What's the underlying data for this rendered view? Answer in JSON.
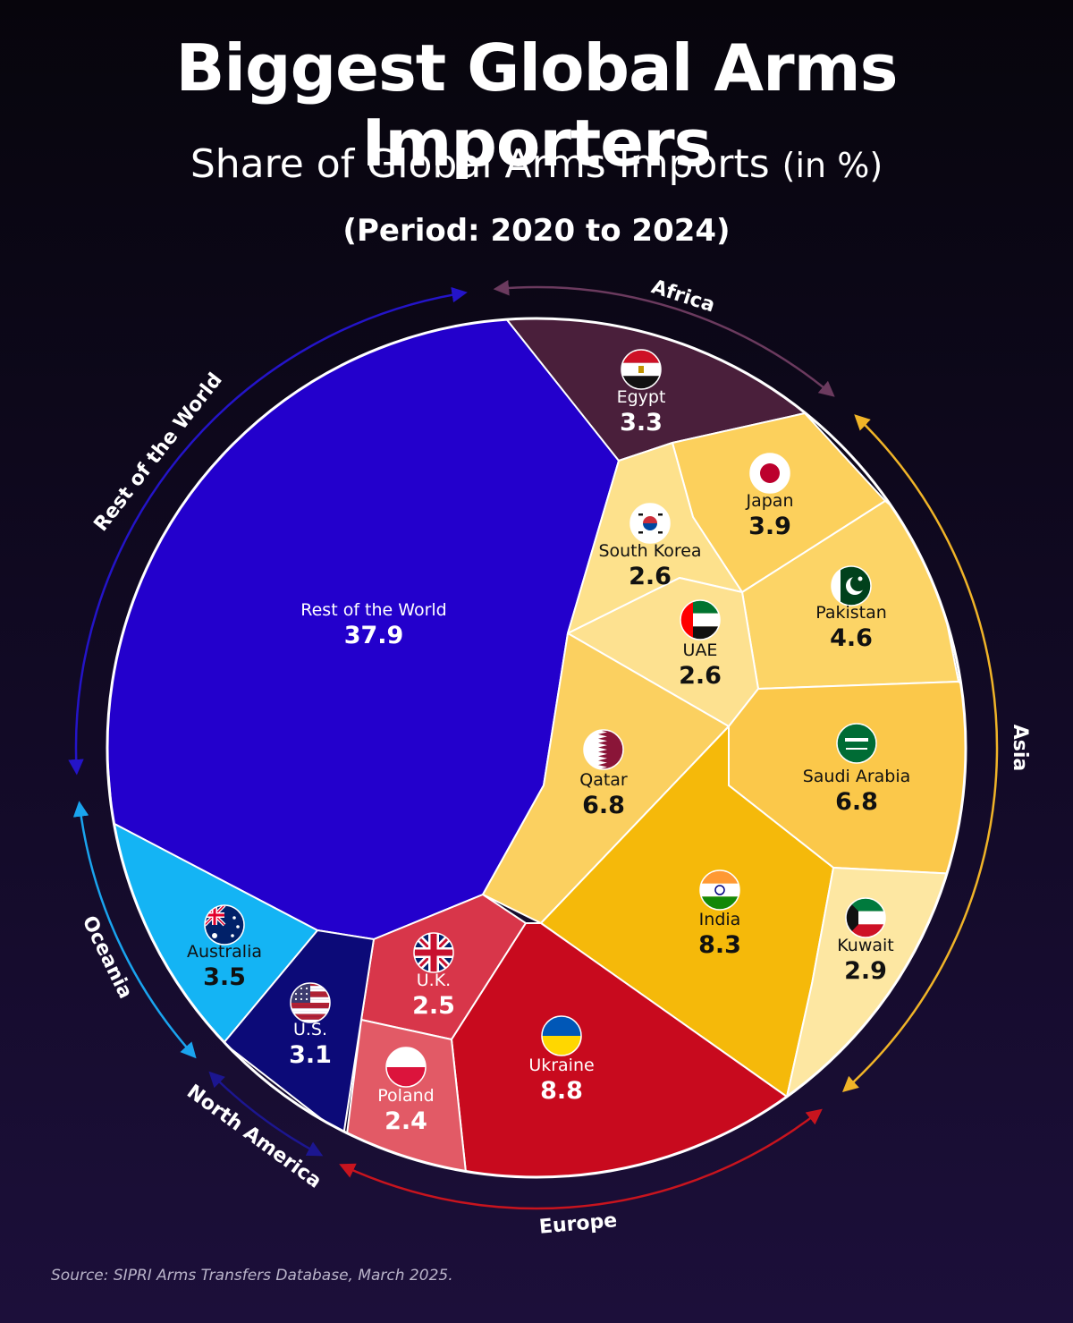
{
  "header": {
    "title": "Biggest Global Arms Importers",
    "subtitle": "Share of Global Arms Imports",
    "subtitle_unit": "(in %)",
    "period": "(Period: 2020 to 2024)"
  },
  "footer": {
    "source": "Source: SIPRI Arms Transfers Database, March 2025."
  },
  "chart_data": {
    "type": "voronoi-treemap",
    "unit": "%",
    "categories": [
      "Rest of the World",
      "Egypt",
      "Japan",
      "South Korea",
      "Pakistan",
      "UAE",
      "Qatar",
      "Saudi Arabia",
      "India",
      "Kuwait",
      "U.K.",
      "Ukraine",
      "Poland",
      "U.S.",
      "Australia"
    ],
    "values": [
      37.9,
      3.3,
      3.9,
      2.6,
      4.6,
      2.6,
      6.8,
      6.8,
      8.3,
      2.9,
      2.5,
      8.8,
      2.4,
      3.1,
      3.5
    ],
    "cells": [
      {
        "id": "rest",
        "name": "Rest of the World",
        "value": 37.9,
        "region": "Rest of the World",
        "color": "#2300cc",
        "text_color": "#ffffff",
        "flag": "none"
      },
      {
        "id": "egypt",
        "name": "Egypt",
        "value": 3.3,
        "region": "Africa",
        "color": "#4a1f3b",
        "text_color": "#ffffff",
        "flag": "egypt-flag-icon"
      },
      {
        "id": "japan",
        "name": "Japan",
        "value": 3.9,
        "region": "Asia",
        "color": "#fcd05c",
        "text_color": "#111111",
        "flag": "japan-flag-icon"
      },
      {
        "id": "skorea",
        "name": "South Korea",
        "value": 2.6,
        "region": "Asia",
        "color": "#fde18c",
        "text_color": "#111111",
        "flag": "south-korea-flag-icon"
      },
      {
        "id": "pakistan",
        "name": "Pakistan",
        "value": 4.6,
        "region": "Asia",
        "color": "#fcd466",
        "text_color": "#111111",
        "flag": "pakistan-flag-icon"
      },
      {
        "id": "uae",
        "name": "UAE",
        "value": 2.6,
        "region": "Asia",
        "color": "#fde190",
        "text_color": "#111111",
        "flag": "uae-flag-icon"
      },
      {
        "id": "qatar",
        "name": "Qatar",
        "value": 6.8,
        "region": "Asia",
        "color": "#fbd060",
        "text_color": "#111111",
        "flag": "qatar-flag-icon"
      },
      {
        "id": "saudi",
        "name": "Saudi Arabia",
        "value": 6.8,
        "region": "Asia",
        "color": "#fbc84a",
        "text_color": "#111111",
        "flag": "saudi-arabia-flag-icon"
      },
      {
        "id": "india",
        "name": "India",
        "value": 8.3,
        "region": "Asia",
        "color": "#f5b90a",
        "text_color": "#111111",
        "flag": "india-flag-icon"
      },
      {
        "id": "kuwait",
        "name": "Kuwait",
        "value": 2.9,
        "region": "Asia",
        "color": "#fde7a2",
        "text_color": "#111111",
        "flag": "kuwait-flag-icon"
      },
      {
        "id": "uk",
        "name": "U.K.",
        "value": 2.5,
        "region": "Europe",
        "color": "#d8364a",
        "text_color": "#ffffff",
        "flag": "uk-flag-icon"
      },
      {
        "id": "ukraine",
        "name": "Ukraine",
        "value": 8.8,
        "region": "Europe",
        "color": "#c80a1e",
        "text_color": "#ffffff",
        "flag": "ukraine-flag-icon"
      },
      {
        "id": "poland",
        "name": "Poland",
        "value": 2.4,
        "region": "Europe",
        "color": "#e25a66",
        "text_color": "#ffffff",
        "flag": "poland-flag-icon"
      },
      {
        "id": "us",
        "name": "U.S.",
        "value": 3.1,
        "region": "North America",
        "color": "#0c0a78",
        "text_color": "#ffffff",
        "flag": "us-flag-icon"
      },
      {
        "id": "australia",
        "name": "Australia",
        "value": 3.5,
        "region": "Oceania",
        "color": "#14b4f4",
        "text_color": "#111111",
        "flag": "australia-flag-icon"
      }
    ],
    "regions": [
      {
        "id": "africa",
        "name": "Africa",
        "color": "#6b3a5e"
      },
      {
        "id": "asia",
        "name": "Asia",
        "color": "#f0b428"
      },
      {
        "id": "europe",
        "name": "Europe",
        "color": "#c8141e"
      },
      {
        "id": "northamerica",
        "name": "North America",
        "color": "#1c1690"
      },
      {
        "id": "oceania",
        "name": "Oceania",
        "color": "#1aa4ee"
      },
      {
        "id": "restworld",
        "name": "Rest of the World",
        "color": "#2414c8"
      }
    ]
  }
}
